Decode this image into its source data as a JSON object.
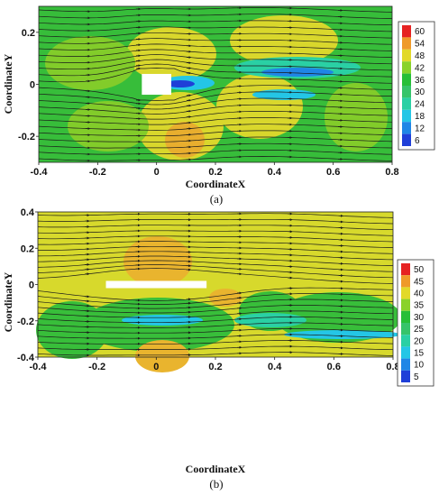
{
  "chart_data": [
    {
      "type": "heatmap",
      "caption": "(a)",
      "xlabel": "CoordinateX",
      "ylabel": "CoordinateY",
      "xlim": [
        -0.4,
        0.8
      ],
      "ylim": [
        -0.3,
        0.3
      ],
      "xticks": [
        -0.4,
        -0.2,
        0,
        0.2,
        0.4,
        0.6,
        0.8
      ],
      "yticks": [
        -0.2,
        0,
        0.2
      ],
      "obstacle": {
        "x": [
          -0.05,
          0.05
        ],
        "y": [
          -0.04,
          0.04
        ]
      },
      "colorbar": {
        "levels": [
          6,
          12,
          18,
          24,
          30,
          36,
          42,
          48,
          54,
          60
        ],
        "colors": [
          "#1f3fd8",
          "#1f86e6",
          "#24c6e6",
          "#2ad0a4",
          "#36c46a",
          "#27bf38",
          "#8ad22a",
          "#e2d92a",
          "#ef9a2a",
          "#e62222"
        ]
      },
      "legend_position": "right"
    },
    {
      "type": "heatmap",
      "caption": "(b)",
      "xlabel": "CoordinateX",
      "ylabel": "CoordinateY",
      "xlim": [
        -0.4,
        0.8
      ],
      "ylim": [
        -0.4,
        0.4
      ],
      "xticks": [
        -0.4,
        -0.2,
        0,
        0.2,
        0.4,
        0.6,
        0.8
      ],
      "yticks": [
        -0.4,
        -0.2,
        0,
        0.2,
        0.4
      ],
      "obstacle": {
        "x": [
          -0.17,
          0.17
        ],
        "y": [
          -0.02,
          0.02
        ]
      },
      "colorbar": {
        "levels": [
          5,
          10,
          15,
          20,
          25,
          30,
          35,
          40,
          45,
          50
        ],
        "colors": [
          "#1f3fd8",
          "#1f86e6",
          "#24c6e6",
          "#2ad0a4",
          "#36c46a",
          "#27bf38",
          "#8ad22a",
          "#e2d92a",
          "#ef9a2a",
          "#e62222"
        ]
      },
      "legend_position": "right"
    }
  ]
}
